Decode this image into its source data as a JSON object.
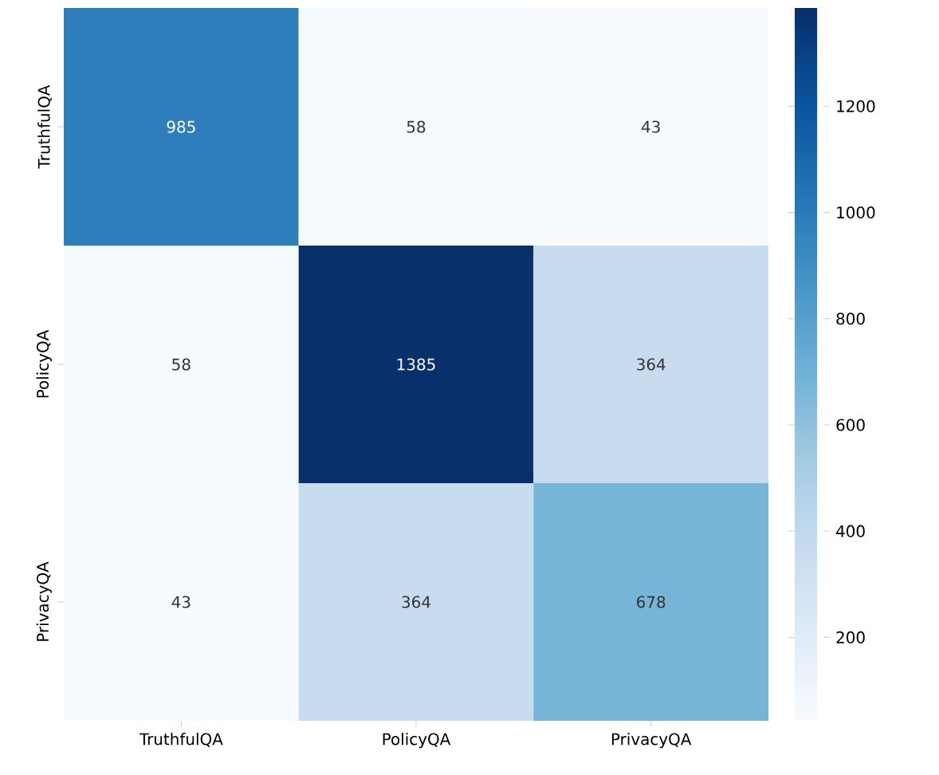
{
  "chart_data": {
    "type": "heatmap",
    "categories": [
      "TruthfulQA",
      "PolicyQA",
      "PrivacyQA"
    ],
    "y_categories": [
      "TruthfulQA",
      "PolicyQA",
      "PrivacyQA"
    ],
    "cells": [
      [
        985,
        58,
        43
      ],
      [
        58,
        1385,
        364
      ],
      [
        43,
        364,
        678
      ]
    ],
    "clim": [
      43,
      1385
    ],
    "cticks": [
      200,
      400,
      600,
      800,
      1000,
      1200
    ],
    "data_labels": true
  }
}
